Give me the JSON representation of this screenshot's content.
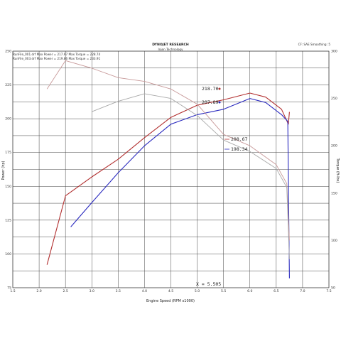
{
  "header": {
    "title": "DYNOJET RESEARCH",
    "subtitle": "Injen Technology",
    "right_info": "CF: SAE  Smoothing: 5"
  },
  "legend": [
    {
      "text": "RunFile_001.drf  Max Power = 217.97    Max Torque = 228.74",
      "color": "#2b2bbf"
    },
    {
      "text": "RunFile_003.drf  Max Power = 219.86    Max Torque = 233.91",
      "color": "#b23030"
    }
  ],
  "annotations": {
    "peak_red": "218.70",
    "peak_blue": "207.89",
    "torque_red": "208.67",
    "torque_blue": "198.34",
    "x_readout": "X = 5.505"
  },
  "chart_data": {
    "type": "line",
    "xlabel": "Engine Speed (RPM x1000)",
    "ylabel": "Power (hp)",
    "y2label": "Torque (ft-lbs)",
    "xlim": [
      1.5,
      7.5
    ],
    "ylim": [
      75,
      250
    ],
    "y2lim": [
      50,
      300
    ],
    "x_ticks": [
      "1.5",
      "2.0",
      "2.5",
      "3.0",
      "3.5",
      "4.0",
      "4.5",
      "5.0",
      "5.5",
      "6.0",
      "6.5",
      "7.0",
      "7.5"
    ],
    "y_ticks": [
      "75",
      "100",
      "125",
      "150",
      "175",
      "200",
      "225",
      "250"
    ],
    "y2_ticks": [
      "50",
      "100",
      "150",
      "200",
      "250",
      "300"
    ],
    "grid": true,
    "series": [
      {
        "name": "RunFile_003.drf",
        "kind": "power",
        "color": "#b23030",
        "x": [
          2.15,
          2.5,
          3.0,
          3.5,
          4.0,
          4.5,
          5.0,
          5.5,
          6.0,
          6.3,
          6.6,
          6.73,
          6.75
        ],
        "y": [
          92,
          143,
          157,
          170,
          186,
          201,
          210,
          214,
          219,
          216,
          207,
          196,
          205
        ]
      },
      {
        "name": "RunFile_001.drf",
        "kind": "power",
        "color": "#2b2bbf",
        "x": [
          2.6,
          3.0,
          3.5,
          4.0,
          4.5,
          5.0,
          5.5,
          6.0,
          6.3,
          6.6,
          6.72,
          6.75
        ],
        "y": [
          120,
          138,
          160,
          180,
          196,
          203,
          207,
          215,
          212,
          203,
          198,
          82
        ]
      },
      {
        "name": "RunFile_003.drf",
        "kind": "torque",
        "color": "#c89a9a",
        "x": [
          2.15,
          2.5,
          3.0,
          3.5,
          4.0,
          4.5,
          5.0,
          5.5,
          6.0,
          6.5,
          6.7,
          6.75
        ],
        "y": [
          260,
          290,
          282,
          272,
          268,
          260,
          244,
          212,
          200,
          180,
          160,
          100
        ]
      },
      {
        "name": "RunFile_001.drf",
        "kind": "torque",
        "color": "#a9a9a9",
        "x": [
          3.0,
          3.5,
          4.0,
          4.5,
          5.0,
          5.5,
          6.0,
          6.5,
          6.7,
          6.75
        ],
        "y": [
          236,
          247,
          255,
          250,
          232,
          206,
          194,
          176,
          156,
          80
        ]
      }
    ]
  }
}
